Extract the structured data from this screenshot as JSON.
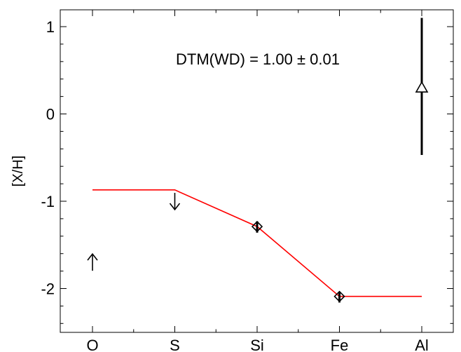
{
  "chart_data": {
    "type": "scatter",
    "categories": [
      "O",
      "S",
      "Si",
      "Fe",
      "Al"
    ],
    "ylabel": "[X/H]",
    "xlabel": "",
    "title": "",
    "ylim": [
      -2.4,
      1.2
    ],
    "yticks": [
      {
        "value": 1,
        "label": "1"
      },
      {
        "value": 0,
        "label": "0"
      },
      {
        "value": -1,
        "label": "-1"
      },
      {
        "value": -2,
        "label": "-2"
      }
    ],
    "annotation": "DTM(WD) = 1.00 ± 0.01",
    "model_line": {
      "color": "#ff0000",
      "points": [
        {
          "x": "O",
          "y": -0.87
        },
        {
          "x": "S",
          "y": -0.87
        },
        {
          "x": "Si",
          "y": -1.29
        },
        {
          "x": "Fe",
          "y": -2.09
        },
        {
          "x": "Al",
          "y": -2.09
        }
      ]
    },
    "points": [
      {
        "element": "O",
        "y": -1.7,
        "marker": "arrow-up",
        "kind": "lower-limit"
      },
      {
        "element": "S",
        "y": -1.0,
        "marker": "arrow-down",
        "kind": "upper-limit"
      },
      {
        "element": "Si",
        "y": -1.29,
        "marker": "diamond",
        "err_low": 0.07,
        "err_high": 0.06
      },
      {
        "element": "Fe",
        "y": -2.09,
        "marker": "diamond",
        "err_low": 0.07,
        "err_high": 0.05
      },
      {
        "element": "Al",
        "y": 0.3,
        "marker": "triangle",
        "err_low": 0.77,
        "err_high": 0.8
      }
    ],
    "colors": {
      "model": "#ff0000",
      "data": "#000000"
    }
  }
}
